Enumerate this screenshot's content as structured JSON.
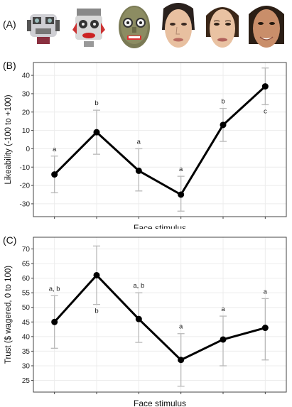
{
  "panels": {
    "a": "(A)",
    "b": "(B)",
    "c": "(C)"
  },
  "faces": [
    {
      "name": "mechanical-robot-1"
    },
    {
      "name": "mechanical-robot-2"
    },
    {
      "name": "android-face-3"
    },
    {
      "name": "humanlike-face-4"
    },
    {
      "name": "humanlike-face-5"
    },
    {
      "name": "human-face-6"
    }
  ],
  "chart_data": [
    {
      "type": "line",
      "xlabel": "Face stimulus",
      "ylabel": "Likeability (-100 to +100)",
      "ylim": [
        -37,
        47
      ],
      "yticks": [
        -30,
        -20,
        -10,
        0,
        10,
        20,
        30,
        40
      ],
      "x": [
        1,
        2,
        3,
        4,
        5,
        6
      ],
      "values": [
        -14,
        9,
        -12,
        -25,
        13,
        34
      ],
      "error_low": [
        -24,
        -3,
        -23,
        -34,
        4,
        24
      ],
      "error_high": [
        -4,
        21,
        0,
        -15,
        22,
        44
      ],
      "significance": [
        {
          "text": "a",
          "pos": "above"
        },
        {
          "text": "b",
          "pos": "above"
        },
        {
          "text": "a",
          "pos": "above"
        },
        {
          "text": "a",
          "pos": "above"
        },
        {
          "text": "b",
          "pos": "above"
        },
        {
          "text": "c",
          "pos": "below"
        }
      ],
      "grid": true
    },
    {
      "type": "line",
      "xlabel": "Face stimulus",
      "ylabel": "Trust ($ wagered, 0 to 100)",
      "ylim": [
        21,
        74
      ],
      "yticks": [
        25,
        30,
        35,
        40,
        45,
        50,
        55,
        60,
        65,
        70
      ],
      "x": [
        1,
        2,
        3,
        4,
        5,
        6
      ],
      "values": [
        45,
        61,
        46,
        32,
        39,
        43
      ],
      "error_low": [
        36,
        51,
        38,
        23,
        30,
        32
      ],
      "error_high": [
        54,
        71,
        55,
        41,
        47,
        53
      ],
      "significance": [
        {
          "text": "a, b",
          "pos": "above"
        },
        {
          "text": "b",
          "pos": "below"
        },
        {
          "text": "a, b",
          "pos": "above"
        },
        {
          "text": "a",
          "pos": "above"
        },
        {
          "text": "a",
          "pos": "above"
        },
        {
          "text": "a",
          "pos": "above"
        }
      ],
      "grid": true
    }
  ]
}
